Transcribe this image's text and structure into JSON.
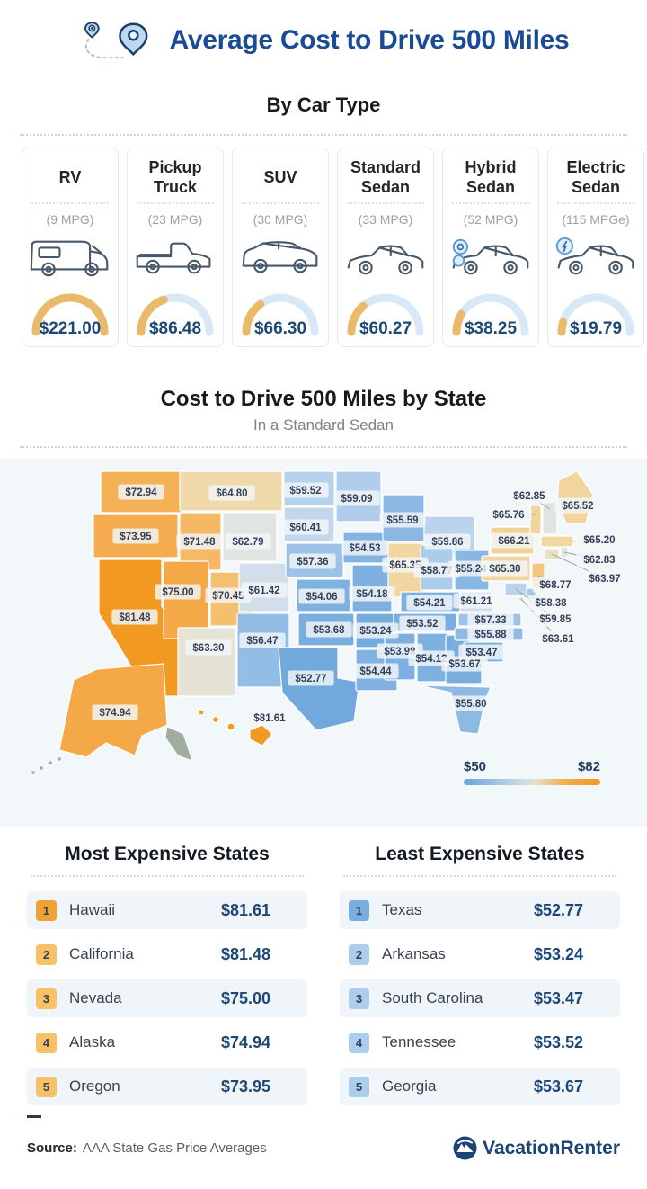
{
  "header": {
    "title": "Average Cost to Drive 500 Miles",
    "subtitle": "By Car Type"
  },
  "map_section": {
    "title": "Cost to Drive 500 Miles by State",
    "subtitle": "In a Standard Sedan",
    "legend": {
      "min_label": "$50",
      "max_label": "$82"
    }
  },
  "chart_data": [
    {
      "type": "bar",
      "title": "Average Cost to Drive 500 Miles",
      "subtitle": "By Car Type",
      "categories": [
        "RV",
        "Pickup Truck",
        "SUV",
        "Standard Sedan",
        "Hybrid Sedan",
        "Electric Sedan"
      ],
      "mpg_labels": [
        "(9 MPG)",
        "(23 MPG)",
        "(30 MPG)",
        "(33 MPG)",
        "(52 MPG)",
        "(115 MPGe)"
      ],
      "values": [
        221.0,
        86.48,
        66.3,
        60.27,
        38.25,
        19.79
      ],
      "value_labels": [
        "$221.00",
        "$86.48",
        "$66.30",
        "$60.27",
        "$38.25",
        "$19.79"
      ],
      "ylim": [
        0,
        221
      ],
      "unit": "USD"
    },
    {
      "type": "heatmap",
      "title": "Cost to Drive 500 Miles by State",
      "subtitle": "In a Standard Sedan",
      "legend": {
        "min": 50,
        "max": 82,
        "min_label": "$50",
        "max_label": "$82",
        "min_color": "#5f9fd9",
        "max_color": "#f2981f"
      },
      "states": [
        {
          "abbr": "WA",
          "name": "Washington",
          "value": 72.94
        },
        {
          "abbr": "OR",
          "name": "Oregon",
          "value": 73.95
        },
        {
          "abbr": "CA",
          "name": "California",
          "value": 81.48
        },
        {
          "abbr": "ID",
          "name": "Idaho",
          "value": 71.48
        },
        {
          "abbr": "NV",
          "name": "Nevada",
          "value": 75.0
        },
        {
          "abbr": "UT",
          "name": "Utah",
          "value": 70.45
        },
        {
          "abbr": "AZ",
          "name": "Arizona",
          "value": 63.3
        },
        {
          "abbr": "MT",
          "name": "Montana",
          "value": 64.8
        },
        {
          "abbr": "WY",
          "name": "Wyoming",
          "value": 62.79
        },
        {
          "abbr": "CO",
          "name": "Colorado",
          "value": 61.42
        },
        {
          "abbr": "NM",
          "name": "New Mexico",
          "value": 56.47
        },
        {
          "abbr": "ND",
          "name": "North Dakota",
          "value": 59.52
        },
        {
          "abbr": "SD",
          "name": "South Dakota",
          "value": 60.41
        },
        {
          "abbr": "NE",
          "name": "Nebraska",
          "value": 57.36
        },
        {
          "abbr": "KS",
          "name": "Kansas",
          "value": 54.06
        },
        {
          "abbr": "OK",
          "name": "Oklahoma",
          "value": 53.68
        },
        {
          "abbr": "TX",
          "name": "Texas",
          "value": 52.77
        },
        {
          "abbr": "MN",
          "name": "Minnesota",
          "value": 59.09
        },
        {
          "abbr": "IA",
          "name": "Iowa",
          "value": 54.53
        },
        {
          "abbr": "MO",
          "name": "Missouri",
          "value": 54.18
        },
        {
          "abbr": "AR",
          "name": "Arkansas",
          "value": 53.24
        },
        {
          "abbr": "LA",
          "name": "Louisiana",
          "value": 54.44
        },
        {
          "abbr": "WI",
          "name": "Wisconsin",
          "value": 55.59
        },
        {
          "abbr": "IL",
          "name": "Illinois",
          "value": 65.35
        },
        {
          "abbr": "MS",
          "name": "Mississippi",
          "value": 53.98
        },
        {
          "abbr": "MI",
          "name": "Michigan",
          "value": 59.86
        },
        {
          "abbr": "IN",
          "name": "Indiana",
          "value": 58.77
        },
        {
          "abbr": "OH",
          "name": "Ohio",
          "value": 55.24
        },
        {
          "abbr": "KY",
          "name": "Kentucky",
          "value": 54.21
        },
        {
          "abbr": "TN",
          "name": "Tennessee",
          "value": 53.52
        },
        {
          "abbr": "AL",
          "name": "Alabama",
          "value": 54.12
        },
        {
          "abbr": "GA",
          "name": "Georgia",
          "value": 53.67
        },
        {
          "abbr": "FL",
          "name": "Florida",
          "value": 55.8
        },
        {
          "abbr": "SC",
          "name": "South Carolina",
          "value": 53.47
        },
        {
          "abbr": "NC",
          "name": "North Carolina",
          "value": 55.88
        },
        {
          "abbr": "VA",
          "name": "Virginia",
          "value": 57.33
        },
        {
          "abbr": "WV",
          "name": "West Virginia",
          "value": 61.21
        },
        {
          "abbr": "PA",
          "name": "Pennsylvania",
          "value": 65.3
        },
        {
          "abbr": "NY",
          "name": "New York",
          "value": 66.21
        },
        {
          "abbr": "ME",
          "name": "Maine",
          "value": 65.52
        },
        {
          "abbr": "VT",
          "name": "Vermont",
          "value": 65.76
        },
        {
          "abbr": "NH",
          "name": "New Hampshire",
          "value": 62.85
        },
        {
          "abbr": "MA",
          "name": "Massachusetts",
          "value": 65.2
        },
        {
          "abbr": "RI",
          "name": "Rhode Island",
          "value": 62.83
        },
        {
          "abbr": "CT",
          "name": "Connecticut",
          "value": 63.97
        },
        {
          "abbr": "NJ",
          "name": "New Jersey",
          "value": 68.77
        },
        {
          "abbr": "DE",
          "name": "Delaware",
          "value": 58.38
        },
        {
          "abbr": "MD",
          "name": "Maryland",
          "value": 59.85
        },
        {
          "abbr": "DC",
          "name": "District of Columbia",
          "value": 63.61
        },
        {
          "abbr": "AK",
          "name": "Alaska",
          "value": 74.94
        },
        {
          "abbr": "HI",
          "name": "Hawaii",
          "value": 81.61
        }
      ]
    },
    {
      "type": "table",
      "title": "Most Expensive States",
      "rows": [
        [
          1,
          "Hawaii",
          "$81.61"
        ],
        [
          2,
          "California",
          "$81.48"
        ],
        [
          3,
          "Nevada",
          "$75.00"
        ],
        [
          4,
          "Alaska",
          "$74.94"
        ],
        [
          5,
          "Oregon",
          "$73.95"
        ]
      ]
    },
    {
      "type": "table",
      "title": "Least Expensive States",
      "rows": [
        [
          1,
          "Texas",
          "$52.77"
        ],
        [
          2,
          "Arkansas",
          "$53.24"
        ],
        [
          3,
          "South Carolina",
          "$53.47"
        ],
        [
          4,
          "Tennessee",
          "$53.52"
        ],
        [
          5,
          "Georgia",
          "$53.67"
        ]
      ]
    }
  ],
  "footer": {
    "source_label": "Source:",
    "source_text": "AAA State Gas Price Averages",
    "brand": "VacationRenter"
  },
  "colors": {
    "title_blue": "#1a4b96",
    "price_navy": "#1d4875",
    "gauge_orange": "#eab969",
    "gauge_track": "#d9e8f7",
    "map_min_blue": "#5f9fd9",
    "map_max_orange": "#f2981f",
    "badge_orange": "#f0a136",
    "badge_blue": "#77aede",
    "map_background": "#f2f7fa"
  }
}
